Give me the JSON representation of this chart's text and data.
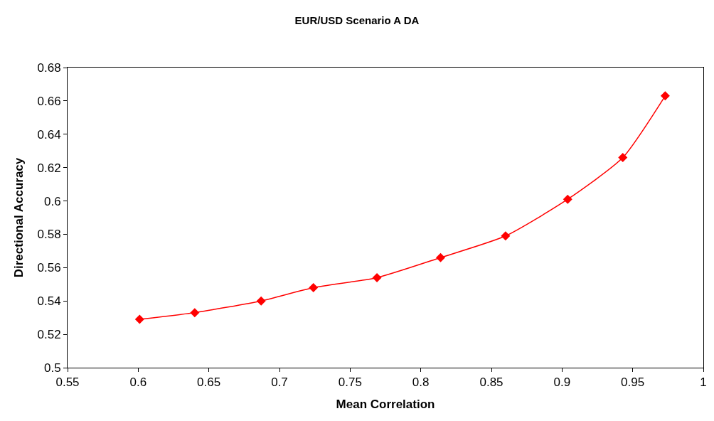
{
  "chart_data": {
    "type": "line",
    "title": "EUR/USD Scenario A DA",
    "xlabel": "Mean Correlation",
    "ylabel": "Directional Accuracy",
    "x": [
      0.601,
      0.64,
      0.687,
      0.724,
      0.769,
      0.814,
      0.86,
      0.904,
      0.943,
      0.973
    ],
    "series": [
      {
        "color": "#ff0000",
        "values": [
          0.529,
          0.533,
          0.54,
          0.548,
          0.554,
          0.566,
          0.579,
          0.601,
          0.626,
          0.663
        ]
      }
    ],
    "xlim": [
      0.55,
      1
    ],
    "xticks": [
      0.55,
      0.6,
      0.65,
      0.7,
      0.75,
      0.8,
      0.85,
      0.9,
      0.95,
      1
    ],
    "ylim": [
      0.5,
      0.68
    ],
    "yticks": [
      0.5,
      0.52,
      0.54,
      0.56,
      0.58,
      0.6,
      0.62,
      0.64,
      0.66,
      0.68
    ],
    "marker": "diamond",
    "line_style": "solid"
  }
}
